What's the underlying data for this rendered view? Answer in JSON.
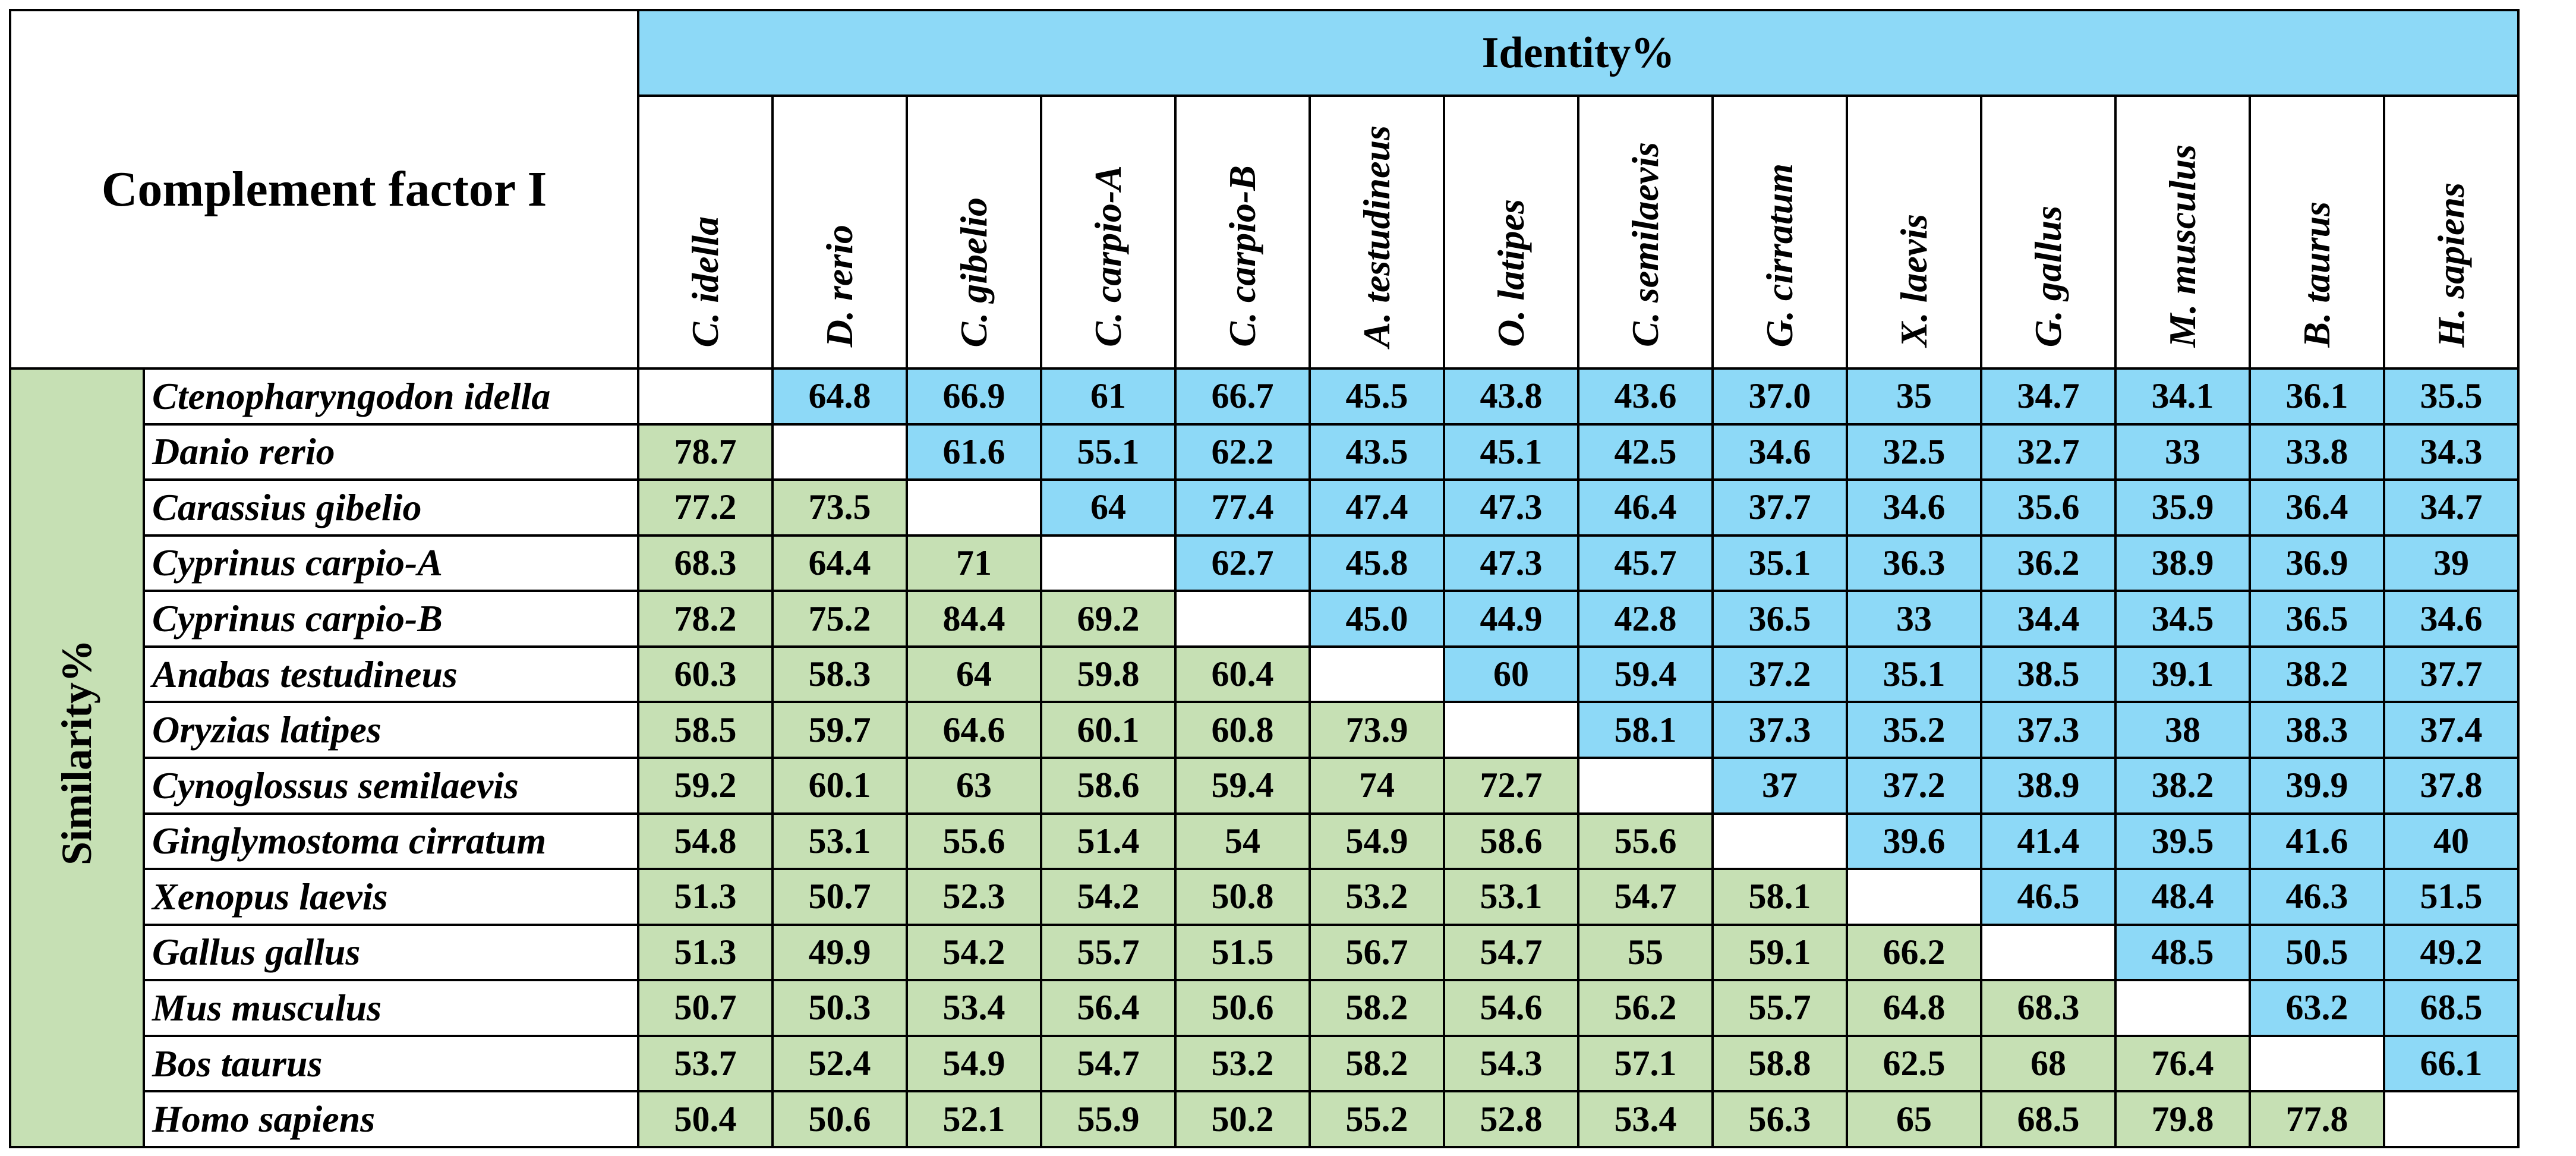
{
  "table": {
    "title": "Complement factor I",
    "identity_label": "Identity%",
    "similarity_label": "Similarity%",
    "columns": [
      "C. idella",
      "D. rerio",
      "C. gibelio",
      "C. carpio-A",
      "C. carpio-B",
      "A. testudineus",
      "O. latipes",
      "C. semilaevis",
      "G. cirratum",
      "X. laevis",
      "G. gallus",
      "M. musculus",
      "B. taurus",
      "H. sapiens"
    ],
    "rows": [
      {
        "name": "Ctenopharyngodon idella",
        "values": [
          "",
          "64.8",
          "66.9",
          "61",
          "66.7",
          "45.5",
          "43.8",
          "43.6",
          "37.0",
          "35",
          "34.7",
          "34.1",
          "36.1",
          "35.5"
        ]
      },
      {
        "name": "Danio rerio",
        "values": [
          "78.7",
          "",
          "61.6",
          "55.1",
          "62.2",
          "43.5",
          "45.1",
          "42.5",
          "34.6",
          "32.5",
          "32.7",
          "33",
          "33.8",
          "34.3"
        ]
      },
      {
        "name": "Carassius gibelio",
        "values": [
          "77.2",
          "73.5",
          "",
          "64",
          "77.4",
          "47.4",
          "47.3",
          "46.4",
          "37.7",
          "34.6",
          "35.6",
          "35.9",
          "36.4",
          "34.7"
        ]
      },
      {
        "name": "Cyprinus carpio-A",
        "values": [
          "68.3",
          "64.4",
          "71",
          "",
          "62.7",
          "45.8",
          "47.3",
          "45.7",
          "35.1",
          "36.3",
          "36.2",
          "38.9",
          "36.9",
          "39"
        ]
      },
      {
        "name": "Cyprinus carpio-B",
        "values": [
          "78.2",
          "75.2",
          "84.4",
          "69.2",
          "",
          "45.0",
          "44.9",
          "42.8",
          "36.5",
          "33",
          "34.4",
          "34.5",
          "36.5",
          "34.6"
        ]
      },
      {
        "name": "Anabas testudineus",
        "values": [
          "60.3",
          "58.3",
          "64",
          "59.8",
          "60.4",
          "",
          "60",
          "59.4",
          "37.2",
          "35.1",
          "38.5",
          "39.1",
          "38.2",
          "37.7"
        ]
      },
      {
        "name": "Oryzias latipes",
        "values": [
          "58.5",
          "59.7",
          "64.6",
          "60.1",
          "60.8",
          "73.9",
          "",
          "58.1",
          "37.3",
          "35.2",
          "37.3",
          "38",
          "38.3",
          "37.4"
        ]
      },
      {
        "name": "Cynoglossus semilaevis",
        "values": [
          "59.2",
          "60.1",
          "63",
          "58.6",
          "59.4",
          "74",
          "72.7",
          "",
          "37",
          "37.2",
          "38.9",
          "38.2",
          "39.9",
          "37.8"
        ]
      },
      {
        "name": "Ginglymostoma cirratum",
        "values": [
          "54.8",
          "53.1",
          "55.6",
          "51.4",
          "54",
          "54.9",
          "58.6",
          "55.6",
          "",
          "39.6",
          "41.4",
          "39.5",
          "41.6",
          "40"
        ]
      },
      {
        "name": "Xenopus laevis",
        "values": [
          "51.3",
          "50.7",
          "52.3",
          "54.2",
          "50.8",
          "53.2",
          "53.1",
          "54.7",
          "58.1",
          "",
          "46.5",
          "48.4",
          "46.3",
          "51.5"
        ]
      },
      {
        "name": "Gallus gallus",
        "values": [
          "51.3",
          "49.9",
          "54.2",
          "55.7",
          "51.5",
          "56.7",
          "54.7",
          "55",
          "59.1",
          "66.2",
          "",
          "48.5",
          "50.5",
          "49.2"
        ]
      },
      {
        "name": "Mus musculus",
        "values": [
          "50.7",
          "50.3",
          "53.4",
          "56.4",
          "50.6",
          "58.2",
          "54.6",
          "56.2",
          "55.7",
          "64.8",
          "68.3",
          "",
          "63.2",
          "68.5"
        ]
      },
      {
        "name": "Bos taurus",
        "values": [
          "53.7",
          "52.4",
          "54.9",
          "54.7",
          "53.2",
          "58.2",
          "54.3",
          "57.1",
          "58.8",
          "62.5",
          "68",
          "76.4",
          "",
          "66.1"
        ]
      },
      {
        "name": "Homo sapiens",
        "values": [
          "50.4",
          "50.6",
          "52.1",
          "55.9",
          "50.2",
          "55.2",
          "52.8",
          "53.4",
          "56.3",
          "65",
          "68.5",
          "79.8",
          "77.8",
          ""
        ]
      }
    ]
  },
  "colors": {
    "identity": "#8dd9f7",
    "similarity": "#c6e0b4",
    "diagonal": "#ffffff",
    "border": "#000000"
  }
}
